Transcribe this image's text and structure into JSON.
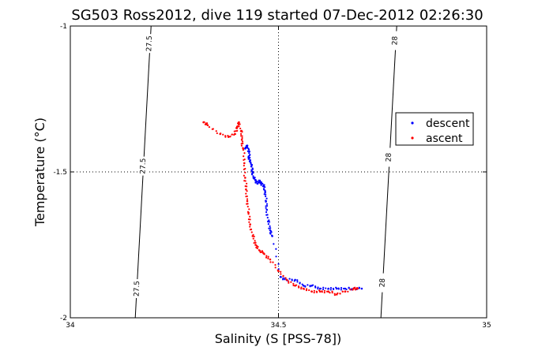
{
  "chart_data": {
    "type": "scatter",
    "title": "SG503 Ross2012, dive 119 started 07-Dec-2012 02:26:30",
    "xlabel": "Salinity (S [PSS-78])",
    "ylabel": "Temperature (°C)",
    "xlim": [
      34,
      35
    ],
    "ylim": [
      -2,
      -1
    ],
    "x_ticks": [
      34,
      34.5,
      35
    ],
    "y_ticks": [
      -1,
      -1.5,
      -2
    ],
    "x_tick_labels": [
      "34",
      "34.5",
      "35"
    ],
    "y_tick_labels": [
      "-1",
      "-1.5",
      "-2"
    ],
    "grid": "dotted at 34.5 and -1.5",
    "legend_position": "right",
    "density_contours": [
      {
        "label": "27.5",
        "points": [
          [
            34.194,
            -1.0
          ],
          [
            34.156,
            -2.0
          ]
        ],
        "label_points": [
          [
            34.19,
            -1.06
          ],
          [
            34.175,
            -1.48
          ],
          [
            34.16,
            -1.9
          ]
        ]
      },
      {
        "label": "28",
        "points": [
          [
            34.784,
            -1.0
          ],
          [
            34.746,
            -2.0
          ]
        ],
        "label_points": [
          [
            34.78,
            -1.05
          ],
          [
            34.765,
            -1.45
          ],
          [
            34.75,
            -1.88
          ]
        ]
      }
    ],
    "series": [
      {
        "name": "descent",
        "color": "#0000ff",
        "points": [
          [
            34.42,
            -1.42
          ],
          [
            34.425,
            -1.41
          ],
          [
            34.43,
            -1.43
          ],
          [
            34.428,
            -1.45
          ],
          [
            34.432,
            -1.46
          ],
          [
            34.435,
            -1.48
          ],
          [
            34.438,
            -1.5
          ],
          [
            34.44,
            -1.52
          ],
          [
            34.445,
            -1.53
          ],
          [
            34.45,
            -1.54
          ],
          [
            34.455,
            -1.53
          ],
          [
            34.46,
            -1.54
          ],
          [
            34.465,
            -1.55
          ],
          [
            34.468,
            -1.57
          ],
          [
            34.47,
            -1.6
          ],
          [
            34.472,
            -1.63
          ],
          [
            34.475,
            -1.67
          ],
          [
            34.48,
            -1.7
          ],
          [
            34.485,
            -1.72
          ],
          [
            34.505,
            -1.86
          ],
          [
            34.52,
            -1.87
          ],
          [
            34.54,
            -1.87
          ],
          [
            34.56,
            -1.89
          ],
          [
            34.58,
            -1.89
          ],
          [
            34.6,
            -1.9
          ],
          [
            34.62,
            -1.9
          ],
          [
            34.64,
            -1.9
          ],
          [
            34.66,
            -1.9
          ],
          [
            34.68,
            -1.9
          ],
          [
            34.7,
            -1.9
          ]
        ]
      },
      {
        "name": "ascent",
        "color": "#ff0000",
        "points": [
          [
            34.32,
            -1.33
          ],
          [
            34.33,
            -1.34
          ],
          [
            34.36,
            -1.37
          ],
          [
            34.38,
            -1.38
          ],
          [
            34.395,
            -1.37
          ],
          [
            34.4,
            -1.35
          ],
          [
            34.405,
            -1.33
          ],
          [
            34.41,
            -1.36
          ],
          [
            34.412,
            -1.39
          ],
          [
            34.415,
            -1.42
          ],
          [
            34.418,
            -1.47
          ],
          [
            34.42,
            -1.52
          ],
          [
            34.422,
            -1.56
          ],
          [
            34.425,
            -1.6
          ],
          [
            34.428,
            -1.64
          ],
          [
            34.432,
            -1.68
          ],
          [
            34.438,
            -1.72
          ],
          [
            34.445,
            -1.75
          ],
          [
            34.455,
            -1.77
          ],
          [
            34.465,
            -1.78
          ],
          [
            34.48,
            -1.8
          ],
          [
            34.5,
            -1.84
          ],
          [
            34.52,
            -1.87
          ],
          [
            34.54,
            -1.89
          ],
          [
            34.56,
            -1.9
          ],
          [
            34.58,
            -1.91
          ],
          [
            34.6,
            -1.91
          ],
          [
            34.62,
            -1.91
          ],
          [
            34.64,
            -1.92
          ],
          [
            34.66,
            -1.91
          ],
          [
            34.68,
            -1.9
          ],
          [
            34.69,
            -1.9
          ]
        ]
      }
    ]
  }
}
